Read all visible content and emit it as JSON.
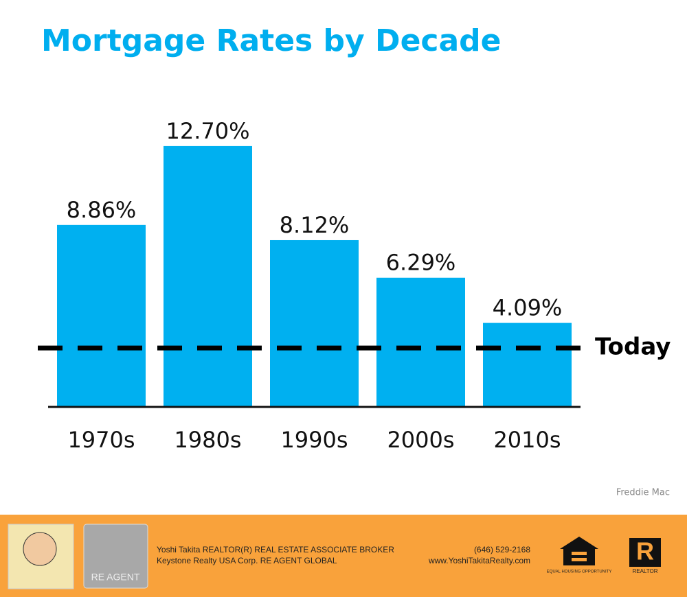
{
  "chart_data": {
    "type": "bar",
    "title": "Mortgage Rates by Decade",
    "categories": [
      "1970s",
      "1980s",
      "1990s",
      "2000s",
      "2010s"
    ],
    "values": [
      8.86,
      12.7,
      8.12,
      6.29,
      4.09
    ],
    "value_labels": [
      "8.86%",
      "12.70%",
      "8.12%",
      "6.29%",
      "4.09%"
    ],
    "color": "#00b0f0",
    "ylim": [
      0,
      14
    ],
    "reference_line": {
      "label": "Today",
      "value": 2.87
    }
  },
  "source": "Freddie Mac",
  "footer": {
    "line1": "Yoshi Takita REALTOR(R) REAL ESTATE ASSOCIATE BROKER",
    "line2": "Keystone Realty USA Corp.  RE AGENT GLOBAL",
    "phone": "(646) 529-2168",
    "website": "www.YoshiTakitaRealty.com",
    "logo_text": "RE AGENT",
    "equal_housing": "EQUAL HOUSING OPPORTUNITY",
    "realtor_mark": "R",
    "realtor": "REALTOR"
  }
}
